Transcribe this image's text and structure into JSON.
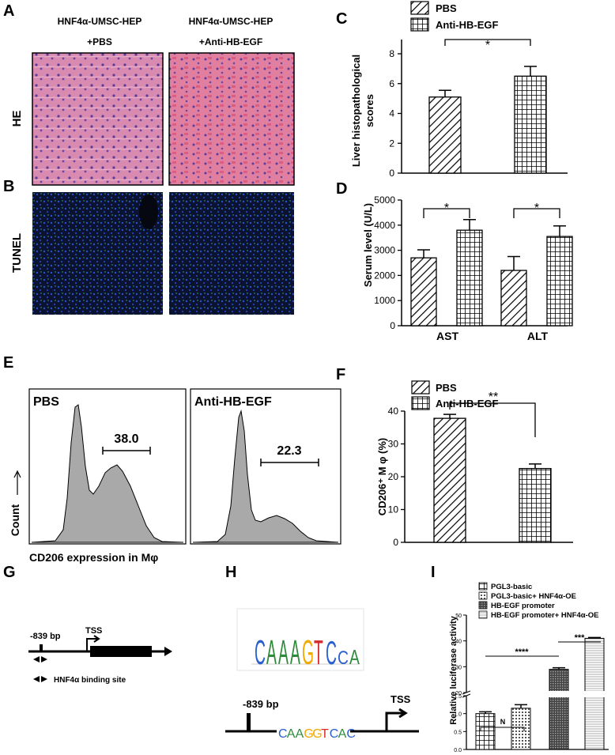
{
  "panel_letters": [
    "A",
    "B",
    "C",
    "D",
    "E",
    "F",
    "G",
    "H",
    "I"
  ],
  "panel_a": {
    "col1_line1": "HNF4α-UMSC-HEP",
    "col1_line2": "+PBS",
    "col2_line1": "HNF4α-UMSC-HEP",
    "col2_line2": "+Anti-HB-EGF",
    "row_he": "HE",
    "row_tunel": "TUNEL",
    "he_color": "#d76a9c",
    "tunel_color": "#0b1330"
  },
  "panel_e": {
    "label_pbs": "PBS",
    "label_anti": "Anti-HB-EGF",
    "gate_pbs": "38.0",
    "gate_anti": "22.3",
    "xlabel": "CD206 expression in Mφ",
    "ylabel": "Count"
  },
  "panel_g": {
    "bp_label": "-839 bp",
    "tss_label": "TSS",
    "legend": "HNF4α binding site"
  },
  "panel_h": {
    "motif_letters": [
      "C",
      "A",
      "A",
      "A",
      "G",
      "T",
      "C",
      "C",
      "A"
    ],
    "bp_label": "-839 bp",
    "seq_letters": [
      "C",
      "A",
      "A",
      "G",
      "G",
      "T",
      "C",
      "A",
      "C"
    ],
    "tss_label": "TSS"
  },
  "chart_data": [
    {
      "panel": "C",
      "type": "bar",
      "categories": [
        "PBS",
        "Anti-HB-EGF"
      ],
      "values": [
        5.1,
        6.5
      ],
      "errors": [
        0.45,
        0.65
      ],
      "series_names": [
        "PBS",
        "Anti-HB-EGF"
      ],
      "ylabel_line1": "Liver histopathological",
      "ylabel_line2": "scores",
      "ylim": [
        0,
        8
      ],
      "yticks": [
        "0",
        "2",
        "4",
        "6",
        "8"
      ],
      "significance": [
        {
          "pair": [
            0,
            1
          ],
          "label": "*"
        }
      ]
    },
    {
      "panel": "D",
      "type": "bar",
      "categories": [
        "AST",
        "ALT"
      ],
      "series": [
        {
          "name": "PBS",
          "values": [
            2700,
            2200
          ],
          "errors": [
            320,
            550
          ]
        },
        {
          "name": "Anti-HB-EGF",
          "values": [
            3800,
            3550
          ],
          "errors": [
            420,
            420
          ]
        }
      ],
      "ylabel": "Serum level (U/L)",
      "ylim": [
        0,
        5000
      ],
      "yticks": [
        "0",
        "1000",
        "2000",
        "3000",
        "4000",
        "5000"
      ],
      "significance": [
        {
          "group": "AST",
          "label": "*"
        },
        {
          "group": "ALT",
          "label": "*"
        }
      ]
    },
    {
      "panel": "F",
      "type": "bar",
      "categories": [
        "PBS",
        "Anti-HB-EGF"
      ],
      "values": [
        37.8,
        22.5
      ],
      "errors": [
        1.2,
        1.4
      ],
      "series_names": [
        "PBS",
        "Anti-HB-EGF"
      ],
      "ylabel": "CD206⁺ M φ (%)",
      "ylim": [
        0,
        40
      ],
      "yticks": [
        "0",
        "10",
        "20",
        "30",
        "40"
      ],
      "significance": [
        {
          "pair": [
            0,
            1
          ],
          "label": "**"
        }
      ]
    },
    {
      "panel": "I",
      "type": "bar",
      "categories": [
        "PGL3-basic",
        "PGL3-basic+ HNF4α-OE",
        "HB-EGF promoter",
        "HB-EGF promoter+ HNF4α-OE"
      ],
      "values": [
        1.0,
        1.15,
        29,
        41
      ],
      "errors": [
        0.05,
        0.1,
        0.6,
        0.3
      ],
      "ylabel": "Relative luciferase activity",
      "axis_break": [
        1.5,
        20
      ],
      "yticks_lower": [
        "0.0",
        "0.5",
        "1.0",
        "1.5"
      ],
      "yticks_upper": [
        "20",
        "30",
        "40",
        "50"
      ],
      "significance": [
        {
          "pair": [
            0,
            1
          ],
          "label": "N"
        },
        {
          "pair": [
            0,
            2
          ],
          "label": "****"
        },
        {
          "pair": [
            2,
            3
          ],
          "label": "***"
        }
      ]
    }
  ]
}
